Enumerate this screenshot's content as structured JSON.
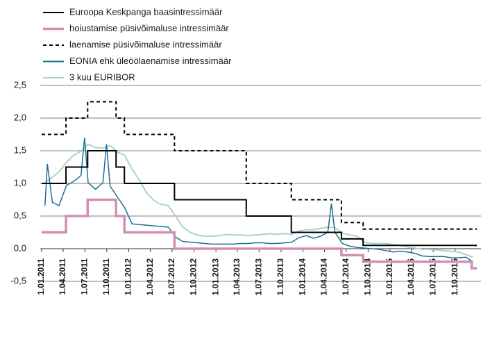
{
  "chart_data": {
    "type": "line",
    "xlim": [
      "2011-01-01",
      "2015-12-31"
    ],
    "xticks": [
      {
        "value": "2011-01-01",
        "label": "1.01.2011"
      },
      {
        "value": "2011-04-01",
        "label": "1.04.2011"
      },
      {
        "value": "2011-07-01",
        "label": "1.07.2011"
      },
      {
        "value": "2011-10-01",
        "label": "1.10.2011"
      },
      {
        "value": "2012-01-01",
        "label": "1.01.2012"
      },
      {
        "value": "2012-04-01",
        "label": "1.04.2012"
      },
      {
        "value": "2012-07-01",
        "label": "1.07.2012"
      },
      {
        "value": "2012-10-01",
        "label": "1.10.2012"
      },
      {
        "value": "2013-01-01",
        "label": "1.01.2013"
      },
      {
        "value": "2013-04-01",
        "label": "1.04.2013"
      },
      {
        "value": "2013-07-01",
        "label": "1.07.2013"
      },
      {
        "value": "2013-10-01",
        "label": "1.10.2013"
      },
      {
        "value": "2014-01-01",
        "label": "1.01.2014"
      },
      {
        "value": "2014-04-01",
        "label": "1.04.2014"
      },
      {
        "value": "2014-07-01",
        "label": "1.07.2014"
      },
      {
        "value": "2014-10-01",
        "label": "1.10.2014"
      },
      {
        "value": "2015-01-01",
        "label": "1.01.2015"
      },
      {
        "value": "2015-04-01",
        "label": "1.04.2015"
      },
      {
        "value": "2015-07-01",
        "label": "1.07.2015"
      },
      {
        "value": "2015-10-01",
        "label": "1.10.2015"
      }
    ],
    "ylim": [
      -0.5,
      2.5
    ],
    "yticks": [
      {
        "value": -0.5,
        "label": "-0,5"
      },
      {
        "value": 0,
        "label": "0,0"
      },
      {
        "value": 0.5,
        "label": "0,5"
      },
      {
        "value": 1,
        "label": "1,0"
      },
      {
        "value": 1.5,
        "label": "1,5"
      },
      {
        "value": 2,
        "label": "2,0"
      },
      {
        "value": 2.5,
        "label": "2,5"
      }
    ],
    "grid": true,
    "legend": "top-left",
    "series": [
      {
        "name": "Euroopa Keskpanga baasintressimäär",
        "color": "#000000",
        "style": "solid",
        "linewidth": 2,
        "x": [
          "2011-01-01",
          "2011-04-13",
          "2011-04-13",
          "2011-07-13",
          "2011-07-13",
          "2011-11-09",
          "2011-11-09",
          "2011-12-14",
          "2011-12-14",
          "2012-07-11",
          "2012-07-11",
          "2013-05-08",
          "2013-05-08",
          "2013-11-13",
          "2013-11-13",
          "2014-06-11",
          "2014-06-11",
          "2014-09-10",
          "2014-09-10",
          "2015-12-31"
        ],
        "values": [
          1,
          1,
          1.25,
          1.25,
          1.5,
          1.5,
          1.25,
          1.25,
          1,
          1,
          0.75,
          0.75,
          0.5,
          0.5,
          0.25,
          0.25,
          0.15,
          0.15,
          0.05,
          0.05
        ]
      },
      {
        "name": "hoiustamise püsivõimaluse intressimäär",
        "color": "#d18eb5",
        "style": "solid",
        "linewidth": 3.5,
        "x": [
          "2011-01-01",
          "2011-04-13",
          "2011-04-13",
          "2011-07-13",
          "2011-07-13",
          "2011-11-09",
          "2011-11-09",
          "2011-12-14",
          "2011-12-14",
          "2012-07-11",
          "2012-07-11",
          "2014-06-11",
          "2014-06-11",
          "2014-09-10",
          "2014-09-10",
          "2015-12-09",
          "2015-12-09",
          "2015-12-31"
        ],
        "values": [
          0.25,
          0.25,
          0.5,
          0.5,
          0.75,
          0.75,
          0.5,
          0.5,
          0.25,
          0.25,
          0,
          0,
          -0.1,
          -0.1,
          -0.2,
          -0.2,
          -0.3,
          -0.3
        ]
      },
      {
        "name": "laenamise püsivõimaluse intressimäär",
        "color": "#000000",
        "style": "dashed",
        "linewidth": 2,
        "x": [
          "2011-01-01",
          "2011-04-13",
          "2011-04-13",
          "2011-07-13",
          "2011-07-13",
          "2011-11-09",
          "2011-11-09",
          "2011-12-14",
          "2011-12-14",
          "2012-07-11",
          "2012-07-11",
          "2013-05-08",
          "2013-05-08",
          "2013-11-13",
          "2013-11-13",
          "2014-06-11",
          "2014-06-11",
          "2014-09-10",
          "2014-09-10",
          "2015-12-31"
        ],
        "values": [
          1.75,
          1.75,
          2,
          2,
          2.25,
          2.25,
          2,
          2,
          1.75,
          1.75,
          1.5,
          1.5,
          1,
          1,
          0.75,
          0.75,
          0.4,
          0.4,
          0.3,
          0.3
        ]
      },
      {
        "name": "EONIA ehk üleöölaenamise intressimäär",
        "color": "#1a6e96",
        "style": "solid",
        "linewidth": 1.5,
        "x": [
          "2011-01-15",
          "2011-01-25",
          "2011-02-15",
          "2011-03-15",
          "2011-04-15",
          "2011-05-15",
          "2011-06-15",
          "2011-06-30",
          "2011-07-15",
          "2011-08-15",
          "2011-09-15",
          "2011-09-30",
          "2011-10-15",
          "2011-11-15",
          "2011-12-15",
          "2012-01-15",
          "2012-02-15",
          "2012-03-15",
          "2012-04-15",
          "2012-05-15",
          "2012-06-15",
          "2012-07-15",
          "2012-08-15",
          "2012-09-15",
          "2012-10-15",
          "2012-11-15",
          "2012-12-15",
          "2013-01-15",
          "2013-02-15",
          "2013-03-15",
          "2013-04-15",
          "2013-05-15",
          "2013-06-15",
          "2013-07-15",
          "2013-08-15",
          "2013-09-15",
          "2013-10-15",
          "2013-11-15",
          "2013-12-15",
          "2014-01-15",
          "2014-02-15",
          "2014-03-15",
          "2014-04-15",
          "2014-04-30",
          "2014-05-15",
          "2014-06-15",
          "2014-07-15",
          "2014-08-15",
          "2014-09-15",
          "2014-10-15",
          "2014-11-15",
          "2014-12-15",
          "2015-01-15",
          "2015-02-15",
          "2015-03-15",
          "2015-04-15",
          "2015-05-15",
          "2015-06-15",
          "2015-07-15",
          "2015-08-15",
          "2015-09-15",
          "2015-10-15",
          "2015-11-15",
          "2015-12-15"
        ],
        "values": [
          0.66,
          1.3,
          0.71,
          0.66,
          0.97,
          1.03,
          1.12,
          1.7,
          1.01,
          0.91,
          1.01,
          1.6,
          0.96,
          0.79,
          0.63,
          0.38,
          0.37,
          0.36,
          0.35,
          0.34,
          0.33,
          0.18,
          0.11,
          0.1,
          0.09,
          0.08,
          0.07,
          0.07,
          0.07,
          0.07,
          0.08,
          0.08,
          0.09,
          0.09,
          0.08,
          0.08,
          0.09,
          0.1,
          0.17,
          0.2,
          0.16,
          0.19,
          0.25,
          0.69,
          0.25,
          0.08,
          0.04,
          0.02,
          0.01,
          0,
          -0.01,
          -0.03,
          -0.05,
          -0.04,
          -0.05,
          -0.07,
          -0.11,
          -0.12,
          -0.12,
          -0.12,
          -0.14,
          -0.14,
          -0.13,
          -0.2
        ]
      },
      {
        "name": "3 kuu EURIBOR",
        "color": "#a8d5c4",
        "style": "solid",
        "linewidth": 2,
        "x": [
          "2011-01-15",
          "2011-02-15",
          "2011-03-15",
          "2011-04-15",
          "2011-05-15",
          "2011-06-15",
          "2011-07-15",
          "2011-08-15",
          "2011-09-15",
          "2011-10-15",
          "2011-11-15",
          "2011-12-15",
          "2012-01-15",
          "2012-02-15",
          "2012-03-15",
          "2012-04-15",
          "2012-05-15",
          "2012-06-15",
          "2012-07-15",
          "2012-08-15",
          "2012-09-15",
          "2012-10-15",
          "2012-11-15",
          "2012-12-15",
          "2013-01-15",
          "2013-02-15",
          "2013-03-15",
          "2013-04-15",
          "2013-05-15",
          "2013-06-15",
          "2013-07-15",
          "2013-08-15",
          "2013-09-15",
          "2013-10-15",
          "2013-11-15",
          "2013-12-15",
          "2014-01-15",
          "2014-02-15",
          "2014-03-15",
          "2014-04-15",
          "2014-05-15",
          "2014-06-15",
          "2014-07-15",
          "2014-08-15",
          "2014-09-15",
          "2014-10-15",
          "2014-11-15",
          "2014-12-15",
          "2015-01-15",
          "2015-02-15",
          "2015-03-15",
          "2015-04-15",
          "2015-05-15",
          "2015-06-15",
          "2015-07-15",
          "2015-08-15",
          "2015-09-15",
          "2015-10-15",
          "2015-11-15",
          "2015-12-15"
        ],
        "values": [
          1.02,
          1.09,
          1.18,
          1.32,
          1.43,
          1.49,
          1.6,
          1.55,
          1.54,
          1.58,
          1.48,
          1.43,
          1.22,
          1.05,
          0.86,
          0.74,
          0.68,
          0.66,
          0.5,
          0.33,
          0.25,
          0.21,
          0.19,
          0.19,
          0.2,
          0.22,
          0.21,
          0.21,
          0.2,
          0.21,
          0.22,
          0.23,
          0.22,
          0.23,
          0.22,
          0.27,
          0.29,
          0.29,
          0.31,
          0.33,
          0.32,
          0.24,
          0.21,
          0.19,
          0.1,
          0.08,
          0.08,
          0.08,
          0.06,
          0.05,
          0.03,
          0.01,
          -0.01,
          -0.01,
          -0.02,
          -0.03,
          -0.04,
          -0.05,
          -0.09,
          -0.13
        ]
      }
    ]
  }
}
